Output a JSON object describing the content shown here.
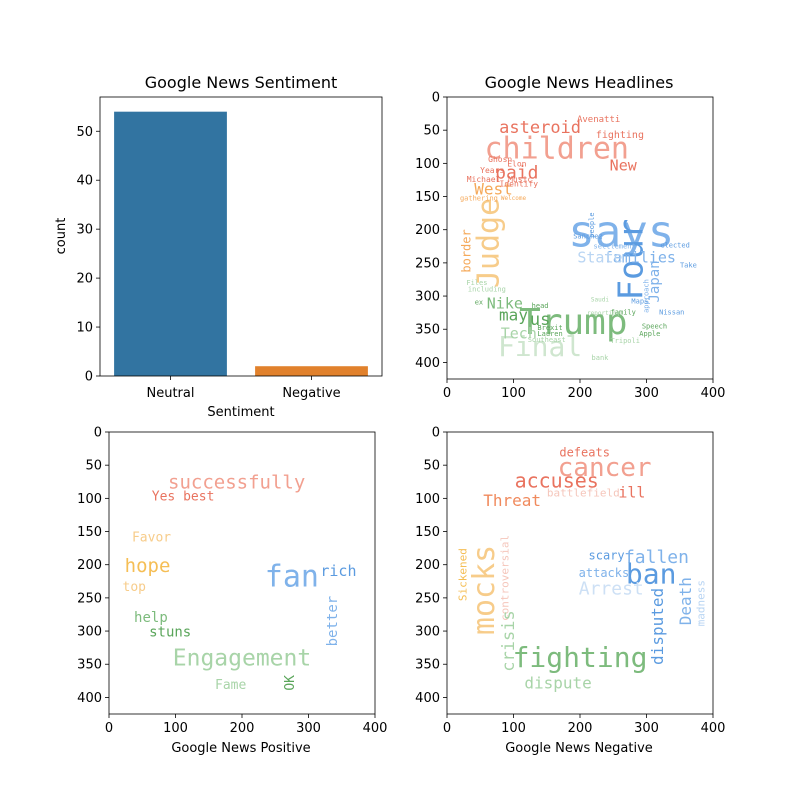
{
  "chart_data": [
    {
      "type": "bar",
      "title": "Google News Sentiment",
      "xlabel": "Sentiment",
      "ylabel": "count",
      "categories": [
        "Neutral",
        "Negative"
      ],
      "values": [
        54,
        2
      ],
      "colors": [
        "#3274a1",
        "#e1812c"
      ],
      "ylim": [
        0,
        57
      ],
      "yticks": [
        "0",
        "10",
        "20",
        "30",
        "40",
        "50"
      ],
      "grid": false
    },
    {
      "type": "wordcloud",
      "title": "Google News Headlines",
      "xlabel": "",
      "xlim": [
        0,
        400
      ],
      "ylim": [
        0,
        400
      ],
      "xticks": [
        "0",
        "100",
        "200",
        "300",
        "400"
      ],
      "yticks": [
        "0",
        "50",
        "100",
        "150",
        "200",
        "250",
        "300",
        "350",
        "400"
      ],
      "words": [
        {
          "text": "children",
          "x": 165,
          "y": 80,
          "size": 30,
          "color": "#f2a090"
        },
        {
          "text": "asteroid",
          "x": 140,
          "y": 47,
          "size": 17,
          "color": "#e9735f"
        },
        {
          "text": "says",
          "x": 262,
          "y": 207,
          "size": 44,
          "color": "#7fb2ea"
        },
        {
          "text": "Trump",
          "x": 190,
          "y": 342,
          "size": 36,
          "color": "#7dbb7d"
        },
        {
          "text": "Final",
          "x": 140,
          "y": 378,
          "size": 28,
          "color": "#cfe6cf"
        },
        {
          "text": "Judge",
          "x": 65,
          "y": 220,
          "size": 30,
          "color": "#f7cc8a",
          "rotate": -90
        },
        {
          "text": "Four",
          "x": 280,
          "y": 245,
          "size": 34,
          "color": "#5b9be0",
          "rotate": -90
        },
        {
          "text": "families",
          "x": 290,
          "y": 243,
          "size": 15,
          "color": "#7fb2ea"
        },
        {
          "text": "State",
          "x": 230,
          "y": 243,
          "size": 15,
          "color": "#b9d5f3"
        },
        {
          "text": "paid",
          "x": 105,
          "y": 115,
          "size": 18,
          "color": "#e9735f"
        },
        {
          "text": "West",
          "x": 70,
          "y": 140,
          "size": 16,
          "color": "#f5a95a"
        },
        {
          "text": "New",
          "x": 265,
          "y": 104,
          "size": 15,
          "color": "#e9735f"
        },
        {
          "text": "Nike",
          "x": 87,
          "y": 312,
          "size": 15,
          "color": "#7dbb7d"
        },
        {
          "text": "may",
          "x": 100,
          "y": 330,
          "size": 16,
          "color": "#5aa55a"
        },
        {
          "text": "us",
          "x": 140,
          "y": 336,
          "size": 17,
          "color": "#5aa55a"
        },
        {
          "text": "Tech",
          "x": 108,
          "y": 357,
          "size": 15,
          "color": "#a8d4a8"
        },
        {
          "text": "Japan",
          "x": 313,
          "y": 278,
          "size": 14,
          "color": "#7fb2ea",
          "rotate": -90
        },
        {
          "text": "border",
          "x": 30,
          "y": 232,
          "size": 12,
          "color": "#f5a95a",
          "rotate": -90
        },
        {
          "text": "fighting",
          "x": 260,
          "y": 57,
          "size": 10,
          "color": "#e9735f"
        },
        {
          "text": "Avenatti",
          "x": 228,
          "y": 34,
          "size": 9,
          "color": "#e9735f"
        },
        {
          "text": "Ghosn",
          "x": 80,
          "y": 94,
          "size": 8,
          "color": "#e9735f"
        },
        {
          "text": "Elon",
          "x": 105,
          "y": 101,
          "size": 8,
          "color": "#e9735f"
        },
        {
          "text": "Years",
          "x": 68,
          "y": 111,
          "size": 8,
          "color": "#e9735f"
        },
        {
          "text": "Music",
          "x": 110,
          "y": 124,
          "size": 8,
          "color": "#e9735f"
        },
        {
          "text": "Michael",
          "x": 55,
          "y": 124,
          "size": 8,
          "color": "#e9735f"
        },
        {
          "text": "Identify",
          "x": 108,
          "y": 131,
          "size": 8,
          "color": "#e9735f"
        },
        {
          "text": "Sanchez",
          "x": 212,
          "y": 210,
          "size": 7,
          "color": "#5b9be0"
        },
        {
          "text": "people",
          "x": 218,
          "y": 193,
          "size": 7,
          "color": "#5b9be0",
          "rotate": -90
        },
        {
          "text": "settlement",
          "x": 252,
          "y": 225,
          "size": 7,
          "color": "#7fb2ea"
        },
        {
          "text": "elected",
          "x": 343,
          "y": 224,
          "size": 7,
          "color": "#5b9be0"
        },
        {
          "text": "Take",
          "x": 363,
          "y": 254,
          "size": 7,
          "color": "#5b9be0"
        },
        {
          "text": "including",
          "x": 60,
          "y": 290,
          "size": 7,
          "color": "#a8d4a8"
        },
        {
          "text": "head",
          "x": 140,
          "y": 315,
          "size": 7,
          "color": "#5aa55a"
        },
        {
          "text": "family",
          "x": 265,
          "y": 325,
          "size": 7,
          "color": "#5aa55a"
        },
        {
          "text": "Speech",
          "x": 312,
          "y": 346,
          "size": 7,
          "color": "#5aa55a"
        },
        {
          "text": "Apple",
          "x": 305,
          "y": 357,
          "size": 7,
          "color": "#5aa55a"
        },
        {
          "text": "Tripoli",
          "x": 268,
          "y": 368,
          "size": 7,
          "color": "#a8d4a8"
        },
        {
          "text": "Nissan",
          "x": 338,
          "y": 325,
          "size": 7,
          "color": "#5b9be0"
        },
        {
          "text": "Brexit",
          "x": 155,
          "y": 348,
          "size": 7,
          "color": "#5aa55a"
        },
        {
          "text": "bank",
          "x": 230,
          "y": 393,
          "size": 7,
          "color": "#a8d4a8"
        },
        {
          "text": "approach",
          "x": 300,
          "y": 300,
          "size": 7,
          "color": "#7fb2ea",
          "rotate": -90
        },
        {
          "text": "ex",
          "x": 48,
          "y": 310,
          "size": 7,
          "color": "#5aa55a"
        },
        {
          "text": "Lauren",
          "x": 155,
          "y": 357,
          "size": 7,
          "color": "#5aa55a"
        },
        {
          "text": "Southeast",
          "x": 150,
          "y": 366,
          "size": 7,
          "color": "#a8d4a8"
        },
        {
          "text": "Maps",
          "x": 290,
          "y": 308,
          "size": 7,
          "color": "#5b9be0"
        },
        {
          "text": "reporting",
          "x": 235,
          "y": 326,
          "size": 6,
          "color": "#a8d4a8"
        },
        {
          "text": "Saudi",
          "x": 230,
          "y": 306,
          "size": 6,
          "color": "#a8d4a8"
        },
        {
          "text": "Files",
          "x": 45,
          "y": 280,
          "size": 7,
          "color": "#a8d4a8"
        },
        {
          "text": "gathering",
          "x": 48,
          "y": 153,
          "size": 7,
          "color": "#f5a95a"
        },
        {
          "text": "Welcome",
          "x": 100,
          "y": 153,
          "size": 6,
          "color": "#f5a95a"
        }
      ]
    },
    {
      "type": "wordcloud",
      "title": "",
      "xlabel": "Google News Positive",
      "xlim": [
        0,
        400
      ],
      "ylim": [
        0,
        400
      ],
      "xticks": [
        "0",
        "100",
        "200",
        "300",
        "400"
      ],
      "yticks": [
        "0",
        "50",
        "100",
        "150",
        "200",
        "250",
        "300",
        "350",
        "400"
      ],
      "words": [
        {
          "text": "successfully",
          "x": 192,
          "y": 77,
          "size": 19,
          "color": "#f2a090"
        },
        {
          "text": "Yes",
          "x": 82,
          "y": 98,
          "size": 13,
          "color": "#e9735f"
        },
        {
          "text": "best",
          "x": 135,
          "y": 98,
          "size": 13,
          "color": "#e9735f"
        },
        {
          "text": "Favor",
          "x": 64,
          "y": 160,
          "size": 13,
          "color": "#f7cc8a"
        },
        {
          "text": "hope",
          "x": 58,
          "y": 203,
          "size": 19,
          "color": "#f5be55"
        },
        {
          "text": "top",
          "x": 38,
          "y": 234,
          "size": 13,
          "color": "#f7cc8a"
        },
        {
          "text": "fan",
          "x": 275,
          "y": 220,
          "size": 30,
          "color": "#7fb2ea"
        },
        {
          "text": "rich",
          "x": 345,
          "y": 210,
          "size": 15,
          "color": "#5b9be0"
        },
        {
          "text": "better",
          "x": 337,
          "y": 285,
          "size": 14,
          "color": "#7fb2ea",
          "rotate": -90
        },
        {
          "text": "help",
          "x": 63,
          "y": 280,
          "size": 14,
          "color": "#7dbb7d"
        },
        {
          "text": "stuns",
          "x": 92,
          "y": 302,
          "size": 14,
          "color": "#5aa55a"
        },
        {
          "text": "Engagement",
          "x": 200,
          "y": 342,
          "size": 23,
          "color": "#a8d4a8"
        },
        {
          "text": "Fame",
          "x": 183,
          "y": 382,
          "size": 13,
          "color": "#a8d4a8"
        },
        {
          "text": "OK",
          "x": 273,
          "y": 378,
          "size": 13,
          "color": "#5aa55a",
          "rotate": -90
        }
      ]
    },
    {
      "type": "wordcloud",
      "title": "",
      "xlabel": "Google News Negative",
      "xlim": [
        0,
        400
      ],
      "ylim": [
        0,
        400
      ],
      "xticks": [
        "0",
        "100",
        "200",
        "300",
        "400"
      ],
      "yticks": [
        "0",
        "50",
        "100",
        "150",
        "200",
        "250",
        "300",
        "350",
        "400"
      ],
      "words": [
        {
          "text": "defeats",
          "x": 207,
          "y": 32,
          "size": 12,
          "color": "#e9735f"
        },
        {
          "text": "cancer",
          "x": 237,
          "y": 55,
          "size": 26,
          "color": "#f2a090"
        },
        {
          "text": "accuses",
          "x": 165,
          "y": 75,
          "size": 20,
          "color": "#e9735f"
        },
        {
          "text": "battlefield",
          "x": 205,
          "y": 93,
          "size": 11,
          "color": "#f5c6bb"
        },
        {
          "text": "ill",
          "x": 278,
          "y": 92,
          "size": 15,
          "color": "#e9735f"
        },
        {
          "text": "Threat",
          "x": 98,
          "y": 105,
          "size": 16,
          "color": "#f08a5d"
        },
        {
          "text": "controversial",
          "x": 88,
          "y": 220,
          "size": 11,
          "color": "#f5c6bb",
          "rotate": -90
        },
        {
          "text": "Sickened",
          "x": 25,
          "y": 215,
          "size": 11,
          "color": "#f5be55",
          "rotate": -90
        },
        {
          "text": "mocks",
          "x": 58,
          "y": 238,
          "size": 30,
          "color": "#f7cc8a",
          "rotate": -90
        },
        {
          "text": "crisis",
          "x": 93,
          "y": 315,
          "size": 17,
          "color": "#a8d4a8",
          "rotate": -90
        },
        {
          "text": "scary",
          "x": 240,
          "y": 187,
          "size": 12,
          "color": "#5b9be0"
        },
        {
          "text": "fallen",
          "x": 315,
          "y": 190,
          "size": 18,
          "color": "#7fb2ea"
        },
        {
          "text": "attacks",
          "x": 236,
          "y": 213,
          "size": 12,
          "color": "#7fb2ea"
        },
        {
          "text": "ban",
          "x": 307,
          "y": 216,
          "size": 28,
          "color": "#5b9be0"
        },
        {
          "text": "Arrest",
          "x": 247,
          "y": 237,
          "size": 18,
          "color": "#cde0f5"
        },
        {
          "text": "Death",
          "x": 360,
          "y": 255,
          "size": 16,
          "color": "#7fb2ea",
          "rotate": -90
        },
        {
          "text": "madness",
          "x": 383,
          "y": 258,
          "size": 11,
          "color": "#b9d5f3",
          "rotate": -90
        },
        {
          "text": "disputed",
          "x": 318,
          "y": 293,
          "size": 16,
          "color": "#5b9be0",
          "rotate": -90
        },
        {
          "text": "fighting",
          "x": 200,
          "y": 342,
          "size": 28,
          "color": "#7dbb7d"
        },
        {
          "text": "dispute",
          "x": 167,
          "y": 380,
          "size": 16,
          "color": "#a8d4a8"
        }
      ]
    }
  ]
}
